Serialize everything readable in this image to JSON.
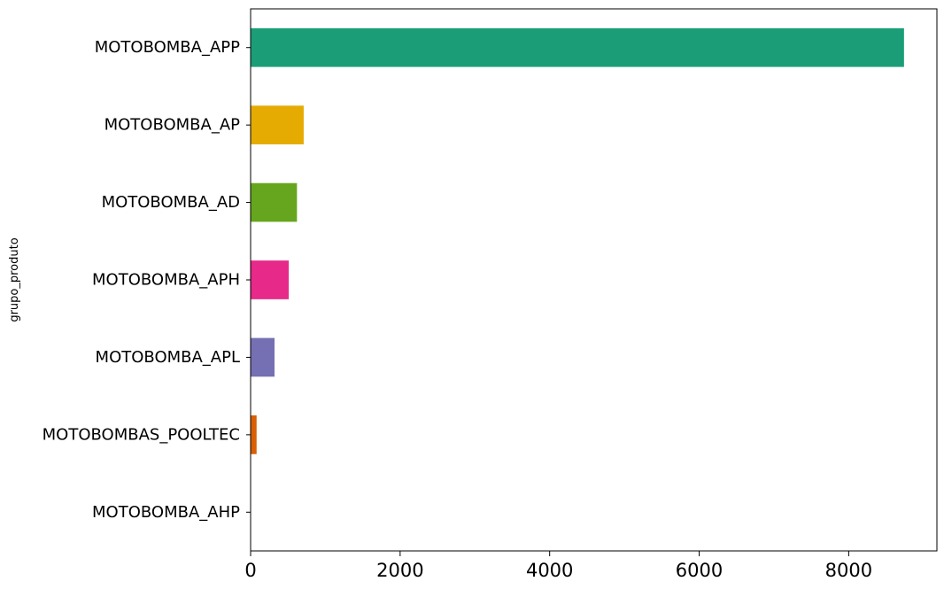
{
  "chart_data": {
    "type": "bar",
    "orientation": "horizontal",
    "ylabel": "grupo_produto",
    "xlabel": "",
    "categories": [
      "MOTOBOMBA_APP",
      "MOTOBOMBA_AP",
      "MOTOBOMBA_AD",
      "MOTOBOMBA_APH",
      "MOTOBOMBA_APL",
      "MOTOBOMBAS_POOLTEC",
      "MOTOBOMBA_AHP"
    ],
    "values": [
      8740,
      710,
      620,
      510,
      320,
      80,
      0
    ],
    "colors": [
      "#1b9e77",
      "#e6ab02",
      "#66a61e",
      "#e7298a",
      "#7570b3",
      "#d95f02",
      "#a6761d"
    ],
    "xlim": [
      0,
      9180
    ],
    "xticks": [
      0,
      2000,
      4000,
      6000,
      8000
    ],
    "xtick_labels": [
      "0",
      "2000",
      "4000",
      "6000",
      "8000"
    ],
    "grid": false,
    "legend": "none"
  }
}
